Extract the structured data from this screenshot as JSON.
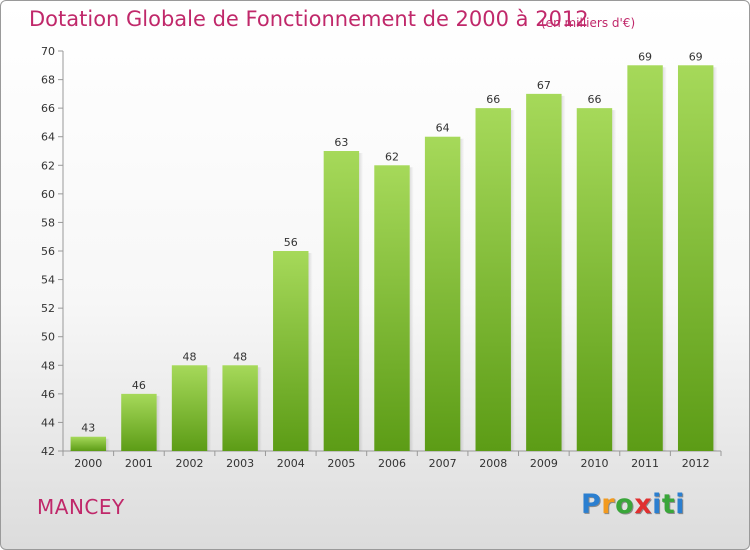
{
  "header": {
    "title": "Dotation Globale de Fonctionnement de 2000 à 2012",
    "unit": "(en milliers d'€)"
  },
  "footer": {
    "commune": "MANCEY",
    "logo": {
      "letters": [
        "P",
        "r",
        "o",
        "x",
        "i",
        "t",
        "i"
      ],
      "colors": [
        "#2b7fd0",
        "#f29a1e",
        "#3aa63a",
        "#e03030",
        "#2b7fd0",
        "#3aa63a",
        "#2b7fd0"
      ]
    }
  },
  "chart_data": {
    "type": "bar",
    "title": "Dotation Globale de Fonctionnement de 2000 à 2012",
    "subtitle": "(en milliers d'€)",
    "xlabel": "",
    "ylabel": "",
    "categories": [
      "2000",
      "2001",
      "2002",
      "2003",
      "2004",
      "2005",
      "2006",
      "2007",
      "2008",
      "2009",
      "2010",
      "2011",
      "2012"
    ],
    "values": [
      43,
      46,
      48,
      48,
      56,
      63,
      62,
      64,
      66,
      67,
      66,
      69,
      69
    ],
    "ylim": [
      42,
      70
    ],
    "yticks": [
      42,
      44,
      46,
      48,
      50,
      52,
      54,
      56,
      58,
      60,
      62,
      64,
      66,
      68,
      70
    ],
    "grid": false,
    "legend": "none",
    "bar_color": "#7dc23a",
    "data_labels": true
  }
}
